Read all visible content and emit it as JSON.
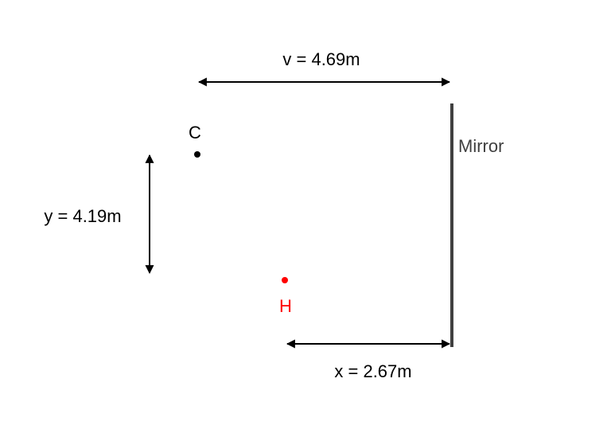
{
  "diagram": {
    "v_label": "v = 4.69m",
    "y_label": "y = 4.19m",
    "x_label": "x = 2.67m",
    "mirror_label": "Mirror",
    "point_c_label": "C",
    "point_h_label": "H",
    "colors": {
      "arrows": "#000000",
      "mirror": "#404040",
      "mirror_text": "#404040",
      "point_c": "#000000",
      "point_h": "#ff0000",
      "text": "#000000"
    }
  }
}
